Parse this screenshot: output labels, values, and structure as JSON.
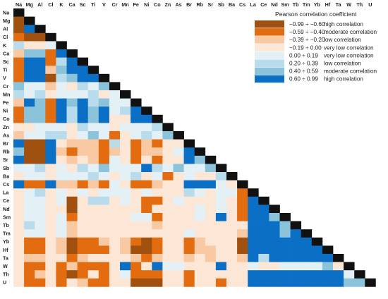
{
  "chart_data": {
    "type": "heatmap",
    "variables": [
      "Na",
      "Mg",
      "Al",
      "Cl",
      "K",
      "Ca",
      "Sc",
      "Ti",
      "V",
      "Cr",
      "Mn",
      "Fe",
      "Ni",
      "Co",
      "Zn",
      "As",
      "Br",
      "Rb",
      "Sr",
      "Sb",
      "Ba",
      "Cs",
      "La",
      "Ce",
      "Nd",
      "Sm",
      "Tb",
      "Tm",
      "Yb",
      "Hf",
      "Ta",
      "W",
      "Th",
      "U"
    ],
    "legend": {
      "title": "Pearson correlation coefficient",
      "classes": [
        {
          "range": "−0.99 ÷ −0.60",
          "label": "high correlation",
          "color": "#A0500F"
        },
        {
          "range": "−0.59 ÷ −0.40",
          "label": "moderate correlation",
          "color": "#E26C0F"
        },
        {
          "range": "−0.39 ÷ −0.20",
          "label": "low correlation",
          "color": "#F8C9A2"
        },
        {
          "range": "−0.19 ÷ 0.00",
          "label": "very low correlation",
          "color": "#FCE6D6"
        },
        {
          "range": "0.00 ÷ 0.19",
          "label": "very low correlation",
          "color": "#E3F0F6"
        },
        {
          "range": "0.20 ÷ 0.39",
          "label": "low correlation",
          "color": "#B8DCEB"
        },
        {
          "range": "0.40 ÷ 0.59",
          "label": "moderate correlation",
          "color": "#8BC3DA"
        },
        {
          "range": "0.60 ÷ 0.99",
          "label": "high correlation",
          "color": "#0B70C5"
        }
      ]
    },
    "diagonal_color": "#111111",
    "cell_classes": [
      [],
      [
        0
      ],
      [
        0,
        7
      ],
      [
        1,
        0,
        0
      ],
      [
        5,
        3,
        3,
        4
      ],
      [
        2,
        6,
        6,
        1,
        7
      ],
      [
        1,
        7,
        7,
        1,
        5,
        7
      ],
      [
        1,
        7,
        7,
        2,
        6,
        7,
        7
      ],
      [
        1,
        7,
        7,
        0,
        5,
        6,
        7,
        7
      ],
      [
        6,
        4,
        4,
        2,
        4,
        3,
        5,
        4,
        6
      ],
      [
        5,
        4,
        5,
        3,
        4,
        4,
        4,
        5,
        3,
        4
      ],
      [
        2,
        7,
        6,
        1,
        7,
        6,
        7,
        5,
        6,
        4,
        4
      ],
      [
        1,
        6,
        6,
        1,
        7,
        5,
        7,
        6,
        7,
        4,
        5,
        7
      ],
      [
        1,
        6,
        6,
        1,
        7,
        5,
        7,
        6,
        7,
        3,
        3,
        7,
        7
      ],
      [
        3,
        3,
        4,
        4,
        4,
        3,
        5,
        4,
        4,
        3,
        4,
        4,
        4,
        5
      ],
      [
        2,
        4,
        4,
        5,
        5,
        3,
        4,
        6,
        4,
        1,
        3,
        4,
        5,
        4,
        6
      ],
      [
        7,
        0,
        0,
        7,
        3,
        2,
        2,
        2,
        1,
        5,
        3,
        1,
        2,
        1,
        3,
        3
      ],
      [
        6,
        0,
        0,
        7,
        2,
        1,
        2,
        2,
        1,
        2,
        3,
        1,
        2,
        2,
        3,
        4,
        7
      ],
      [
        7,
        0,
        0,
        7,
        3,
        2,
        3,
        2,
        1,
        4,
        3,
        1,
        3,
        1,
        3,
        3,
        7,
        6
      ],
      [
        4,
        4,
        5,
        3,
        4,
        3,
        5,
        4,
        6,
        4,
        4,
        4,
        7,
        5,
        4,
        6,
        4,
        4,
        6
      ],
      [
        3,
        4,
        4,
        3,
        4,
        4,
        4,
        5,
        4,
        3,
        4,
        5,
        3,
        4,
        1,
        3,
        4,
        3,
        3,
        5
      ],
      [
        7,
        1,
        1,
        7,
        2,
        2,
        1,
        2,
        1,
        4,
        3,
        1,
        1,
        2,
        3,
        3,
        7,
        7,
        7,
        4,
        3
      ],
      [
        3,
        4,
        5,
        3,
        4,
        3,
        4,
        3,
        4,
        4,
        4,
        3,
        4,
        3,
        3,
        3,
        5,
        4,
        3,
        4,
        4,
        1
      ],
      [
        3,
        4,
        4,
        3,
        4,
        0,
        3,
        5,
        5,
        3,
        4,
        3,
        1,
        1,
        3,
        4,
        3,
        3,
        3,
        4,
        3,
        1,
        7
      ],
      [
        3,
        4,
        4,
        3,
        3,
        0,
        3,
        3,
        3,
        3,
        3,
        3,
        1,
        3,
        3,
        3,
        3,
        4,
        3,
        4,
        3,
        1,
        7,
        7
      ],
      [
        3,
        4,
        4,
        3,
        4,
        1,
        3,
        3,
        3,
        3,
        3,
        4,
        4,
        1,
        3,
        3,
        3,
        4,
        3,
        7,
        3,
        1,
        7,
        7,
        6
      ],
      [
        3,
        5,
        4,
        3,
        4,
        2,
        3,
        3,
        3,
        3,
        3,
        3,
        3,
        2,
        3,
        3,
        3,
        3,
        3,
        3,
        3,
        3,
        7,
        7,
        7,
        6
      ],
      [
        3,
        4,
        4,
        3,
        4,
        2,
        3,
        3,
        3,
        3,
        3,
        3,
        3,
        3,
        3,
        3,
        4,
        3,
        3,
        3,
        3,
        2,
        7,
        7,
        7,
        6,
        7
      ],
      [
        3,
        1,
        1,
        3,
        2,
        0,
        1,
        1,
        2,
        3,
        2,
        1,
        0,
        1,
        3,
        3,
        1,
        2,
        3,
        3,
        3,
        0,
        7,
        7,
        7,
        7,
        7,
        7
      ],
      [
        3,
        1,
        1,
        3,
        2,
        0,
        1,
        1,
        1,
        3,
        2,
        0,
        0,
        1,
        3,
        3,
        1,
        2,
        2,
        3,
        3,
        0,
        7,
        7,
        7,
        7,
        7,
        7,
        7
      ],
      [
        3,
        2,
        2,
        3,
        3,
        1,
        2,
        3,
        3,
        3,
        3,
        2,
        1,
        2,
        3,
        3,
        2,
        3,
        2,
        3,
        3,
        2,
        7,
        5,
        7,
        7,
        7,
        7,
        7,
        7
      ],
      [
        3,
        1,
        1,
        3,
        1,
        2,
        1,
        1,
        1,
        3,
        7,
        1,
        3,
        7,
        4,
        4,
        3,
        3,
        3,
        7,
        3,
        3,
        4,
        3,
        3,
        4,
        4,
        4,
        4,
        6,
        3
      ],
      [
        3,
        1,
        2,
        3,
        1,
        0,
        1,
        3,
        1,
        3,
        4,
        1,
        1,
        1,
        3,
        3,
        1,
        3,
        3,
        3,
        3,
        3,
        7,
        7,
        7,
        7,
        7,
        7,
        7,
        7,
        7,
        4
      ],
      [
        3,
        1,
        1,
        3,
        1,
        3,
        2,
        1,
        1,
        3,
        3,
        0,
        0,
        0,
        3,
        3,
        1,
        3,
        3,
        1,
        3,
        3,
        7,
        7,
        7,
        7,
        7,
        7,
        7,
        7,
        7,
        6,
        6
      ]
    ]
  }
}
